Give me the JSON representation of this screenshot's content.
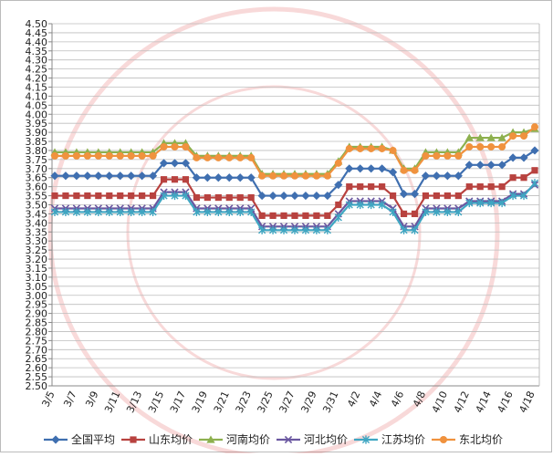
{
  "chart_data": {
    "type": "line",
    "categories": [
      "3/5",
      null,
      "3/7",
      null,
      "3/9",
      null,
      "3/11",
      null,
      "3/13",
      null,
      "3/15",
      null,
      "3/17",
      null,
      "3/19",
      null,
      "3/21",
      null,
      "3/23",
      null,
      "3/25",
      null,
      "3/27",
      null,
      "3/29",
      null,
      "3/31",
      null,
      "4/2",
      null,
      "4/4",
      null,
      "4/6",
      null,
      "4/8",
      null,
      "4/10",
      null,
      "4/12",
      null,
      "4/14",
      null,
      "4/16",
      null,
      "4/18"
    ],
    "series": [
      {
        "name": "全国平均",
        "color": "#3f6fb0",
        "marker": "diamond",
        "values": [
          3.66,
          3.66,
          3.66,
          3.66,
          3.66,
          3.66,
          3.66,
          3.66,
          3.66,
          3.66,
          3.73,
          3.73,
          3.73,
          3.65,
          3.65,
          3.65,
          3.65,
          3.65,
          3.65,
          3.55,
          3.55,
          3.55,
          3.55,
          3.55,
          3.55,
          3.55,
          3.61,
          3.7,
          3.7,
          3.7,
          3.7,
          3.68,
          3.56,
          3.56,
          3.66,
          3.66,
          3.66,
          3.66,
          3.72,
          3.72,
          3.72,
          3.72,
          3.76,
          3.76,
          3.8
        ]
      },
      {
        "name": "山东均价",
        "color": "#b8423f",
        "marker": "square",
        "values": [
          3.55,
          3.55,
          3.55,
          3.55,
          3.55,
          3.55,
          3.55,
          3.55,
          3.55,
          3.55,
          3.64,
          3.64,
          3.64,
          3.54,
          3.54,
          3.54,
          3.54,
          3.54,
          3.54,
          3.44,
          3.44,
          3.44,
          3.44,
          3.44,
          3.44,
          3.44,
          3.5,
          3.6,
          3.6,
          3.6,
          3.6,
          3.55,
          3.45,
          3.45,
          3.55,
          3.55,
          3.55,
          3.55,
          3.6,
          3.6,
          3.6,
          3.6,
          3.65,
          3.65,
          3.69
        ]
      },
      {
        "name": "河南均价",
        "color": "#8db04e",
        "marker": "triangle",
        "values": [
          3.79,
          3.79,
          3.79,
          3.79,
          3.79,
          3.79,
          3.79,
          3.79,
          3.79,
          3.79,
          3.84,
          3.84,
          3.84,
          3.77,
          3.77,
          3.77,
          3.77,
          3.77,
          3.77,
          3.67,
          3.67,
          3.67,
          3.67,
          3.67,
          3.67,
          3.67,
          3.74,
          3.82,
          3.82,
          3.82,
          3.82,
          3.8,
          3.7,
          3.7,
          3.79,
          3.79,
          3.79,
          3.79,
          3.87,
          3.87,
          3.87,
          3.87,
          3.9,
          3.9,
          3.92
        ]
      },
      {
        "name": "河北均价",
        "color": "#6a57a0",
        "marker": "x",
        "values": [
          3.48,
          3.48,
          3.48,
          3.48,
          3.48,
          3.48,
          3.48,
          3.48,
          3.48,
          3.48,
          3.57,
          3.57,
          3.57,
          3.48,
          3.48,
          3.48,
          3.48,
          3.48,
          3.48,
          3.38,
          3.38,
          3.38,
          3.38,
          3.38,
          3.38,
          3.38,
          3.45,
          3.52,
          3.52,
          3.52,
          3.52,
          3.48,
          3.38,
          3.38,
          3.48,
          3.48,
          3.48,
          3.48,
          3.52,
          3.52,
          3.52,
          3.52,
          3.56,
          3.56,
          3.61
        ]
      },
      {
        "name": "江苏均价",
        "color": "#3fa6c2",
        "marker": "star",
        "values": [
          3.46,
          3.46,
          3.46,
          3.46,
          3.46,
          3.46,
          3.46,
          3.46,
          3.46,
          3.46,
          3.55,
          3.55,
          3.55,
          3.46,
          3.46,
          3.46,
          3.46,
          3.46,
          3.46,
          3.36,
          3.36,
          3.36,
          3.36,
          3.36,
          3.36,
          3.36,
          3.43,
          3.5,
          3.5,
          3.5,
          3.5,
          3.46,
          3.36,
          3.36,
          3.46,
          3.46,
          3.46,
          3.46,
          3.51,
          3.51,
          3.51,
          3.51,
          3.55,
          3.55,
          3.62
        ]
      },
      {
        "name": "东北均价",
        "color": "#f0923e",
        "marker": "circle",
        "values": [
          3.77,
          3.77,
          3.77,
          3.77,
          3.77,
          3.77,
          3.77,
          3.77,
          3.77,
          3.77,
          3.82,
          3.82,
          3.82,
          3.76,
          3.76,
          3.76,
          3.76,
          3.76,
          3.76,
          3.66,
          3.66,
          3.66,
          3.66,
          3.66,
          3.66,
          3.66,
          3.73,
          3.81,
          3.81,
          3.81,
          3.81,
          3.8,
          3.69,
          3.69,
          3.77,
          3.77,
          3.77,
          3.77,
          3.82,
          3.82,
          3.82,
          3.82,
          3.88,
          3.88,
          3.93
        ]
      }
    ],
    "ylim": [
      2.5,
      4.5
    ],
    "yticks": [
      {
        "value": 2.5,
        "label": "2.50"
      },
      {
        "value": 2.55,
        "label": "2.55"
      },
      {
        "value": 2.6,
        "label": "2.60"
      },
      {
        "value": 2.65,
        "label": "2.65"
      },
      {
        "value": 2.7,
        "label": "2.70"
      },
      {
        "value": 2.75,
        "label": "2.75"
      },
      {
        "value": 2.8,
        "label": "2.80"
      },
      {
        "value": 2.85,
        "label": "2.85"
      },
      {
        "value": 2.9,
        "label": "2.90"
      },
      {
        "value": 2.95,
        "label": "2.95"
      },
      {
        "value": 3.0,
        "label": "3.00"
      },
      {
        "value": 3.05,
        "label": "3.05"
      },
      {
        "value": 3.1,
        "label": "3.10"
      },
      {
        "value": 3.15,
        "label": "3.15"
      },
      {
        "value": 3.2,
        "label": "3.20"
      },
      {
        "value": 3.25,
        "label": "3.25"
      },
      {
        "value": 3.3,
        "label": "3.30"
      },
      {
        "value": 3.35,
        "label": "3.35"
      },
      {
        "value": 3.4,
        "label": "3.40"
      },
      {
        "value": 3.45,
        "label": "3.45"
      },
      {
        "value": 3.5,
        "label": "3.50"
      },
      {
        "value": 3.55,
        "label": "3.55"
      },
      {
        "value": 3.6,
        "label": "3.60"
      },
      {
        "value": 3.65,
        "label": "3.65"
      },
      {
        "value": 3.7,
        "label": "3.70"
      },
      {
        "value": 3.75,
        "label": "3.75"
      },
      {
        "value": 3.8,
        "label": "3.80"
      },
      {
        "value": 3.85,
        "label": "3.85"
      },
      {
        "value": 3.9,
        "label": "3.90"
      },
      {
        "value": 3.95,
        "label": "3.95"
      },
      {
        "value": 4.0,
        "label": "4.00"
      },
      {
        "value": 4.05,
        "label": "4.05"
      },
      {
        "value": 4.1,
        "label": "4.10"
      },
      {
        "value": 4.15,
        "label": "4.15"
      },
      {
        "value": 4.2,
        "label": "4.20"
      },
      {
        "value": 4.25,
        "label": "4.25"
      },
      {
        "value": 4.3,
        "label": "4.30"
      },
      {
        "value": 4.35,
        "label": "4.35"
      },
      {
        "value": 4.4,
        "label": "4.40"
      },
      {
        "value": 4.45,
        "label": "4.45"
      },
      {
        "value": 4.5,
        "label": "4.50"
      }
    ],
    "grid": true,
    "legend": "bottom"
  }
}
